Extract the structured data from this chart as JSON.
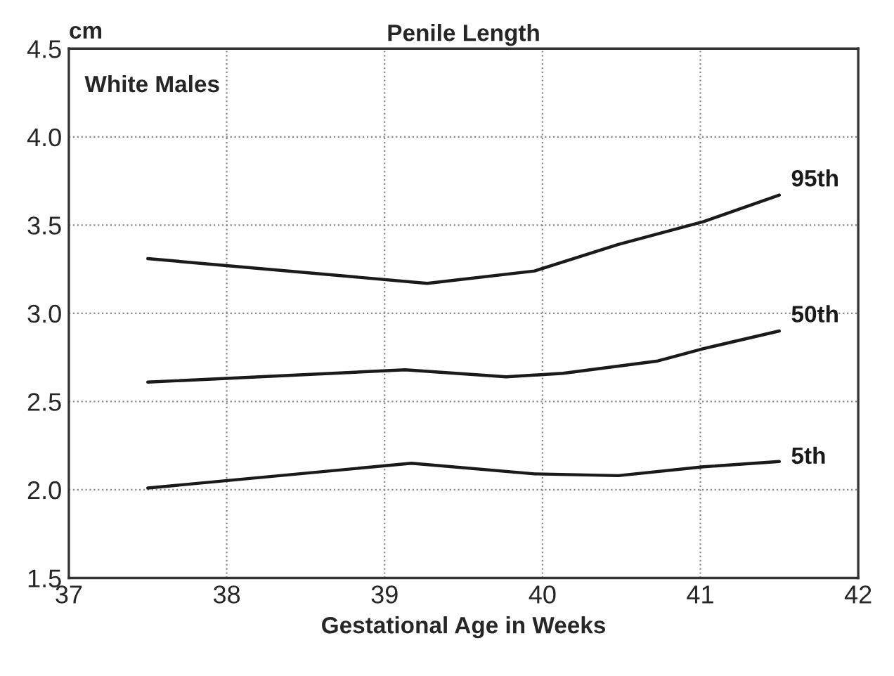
{
  "chart_data": {
    "type": "line",
    "title": "Penile Length",
    "ylabel": "cm",
    "xlabel": "Gestational Age in Weeks",
    "annotations": [
      "White Males"
    ],
    "series": [
      {
        "name": "95th",
        "color": "#1a1a1a",
        "x": [
          37.5,
          39.27,
          39.95,
          40.48,
          41.02,
          41.5
        ],
        "values": [
          3.31,
          3.17,
          3.24,
          3.39,
          3.52,
          3.67
        ]
      },
      {
        "name": "50th",
        "color": "#1a1a1a",
        "x": [
          37.5,
          39.13,
          39.77,
          40.13,
          40.73,
          41.02,
          41.5
        ],
        "values": [
          2.61,
          2.68,
          2.64,
          2.66,
          2.73,
          2.8,
          2.9
        ]
      },
      {
        "name": "5th",
        "color": "#1a1a1a",
        "x": [
          37.5,
          39.17,
          39.95,
          40.48,
          41.02,
          41.5
        ],
        "values": [
          2.01,
          2.15,
          2.09,
          2.08,
          2.13,
          2.16
        ]
      }
    ],
    "xlim": [
      37,
      42
    ],
    "xticks": [
      37,
      38,
      39,
      40,
      41,
      42
    ],
    "ylim": [
      1.5,
      4.5
    ],
    "yticks": [
      {
        "value": 1.5,
        "label": "1.5"
      },
      {
        "value": 2.0,
        "label": "2.0"
      },
      {
        "value": 2.5,
        "label": "2.5"
      },
      {
        "value": 3.0,
        "label": "3.0"
      },
      {
        "value": 3.5,
        "label": "3.5"
      },
      {
        "value": 4.0,
        "label": "4.0"
      },
      {
        "value": 4.5,
        "label": "4.5"
      }
    ],
    "grid": true,
    "legend": false,
    "marker": "none",
    "line_style": "solid"
  }
}
